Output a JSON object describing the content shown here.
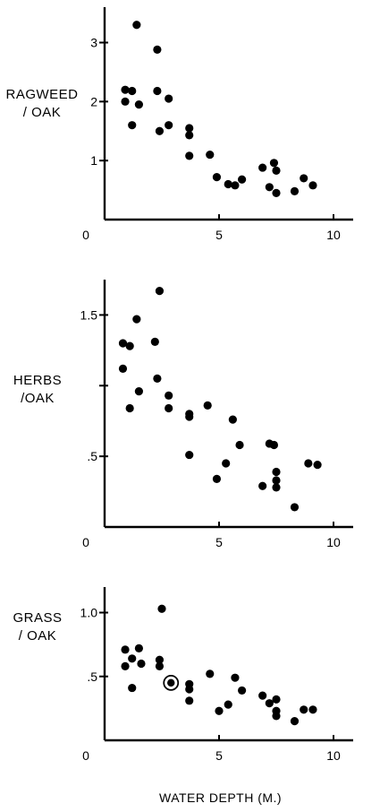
{
  "chart_data": [
    {
      "type": "scatter",
      "ylabel_line1": "RAGWEED",
      "ylabel_line2": "/ OAK",
      "xlabel": "",
      "xlim": [
        0,
        11
      ],
      "ylim": [
        0,
        3.6
      ],
      "xticks": [
        0,
        5,
        10
      ],
      "yticks": [
        1,
        2,
        3
      ],
      "x": [
        0.9,
        0.9,
        1.2,
        1.2,
        1.4,
        1.5,
        2.3,
        2.3,
        2.4,
        2.8,
        2.8,
        3.7,
        3.7,
        3.7,
        4.6,
        4.9,
        5.4,
        5.7,
        6.0,
        6.9,
        7.2,
        7.4,
        7.5,
        7.5,
        8.3,
        8.7,
        9.1
      ],
      "y": [
        2.2,
        2.0,
        2.18,
        1.6,
        3.3,
        1.95,
        2.88,
        2.18,
        1.5,
        2.05,
        1.6,
        1.55,
        1.43,
        1.08,
        1.1,
        0.72,
        0.6,
        0.58,
        0.68,
        0.88,
        0.55,
        0.96,
        0.83,
        0.45,
        0.48,
        0.7,
        0.58
      ]
    },
    {
      "type": "scatter",
      "ylabel_line1": "HERBS",
      "ylabel_line2": "/OAK",
      "xlabel": "",
      "xlim": [
        0,
        11
      ],
      "ylim": [
        0,
        1.75
      ],
      "xticks": [
        0,
        5,
        10
      ],
      "yticks": [
        0.5,
        1.0,
        1.5
      ],
      "ytick_labels": [
        ".5",
        "",
        "1.5"
      ],
      "x": [
        0.8,
        0.8,
        1.1,
        1.1,
        1.4,
        1.5,
        2.2,
        2.3,
        2.4,
        2.8,
        2.8,
        3.7,
        3.7,
        3.7,
        4.5,
        4.9,
        5.3,
        5.6,
        5.9,
        6.9,
        7.2,
        7.4,
        7.5,
        7.5,
        7.5,
        8.3,
        8.9,
        9.3
      ],
      "y": [
        1.3,
        1.12,
        1.28,
        0.84,
        1.47,
        0.96,
        1.31,
        1.05,
        1.67,
        0.93,
        0.84,
        0.8,
        0.78,
        0.51,
        0.86,
        0.34,
        0.45,
        0.76,
        0.58,
        0.29,
        0.59,
        0.58,
        0.39,
        0.33,
        0.28,
        0.14,
        0.45,
        0.44
      ]
    },
    {
      "type": "scatter",
      "ylabel_line1": "GRASS",
      "ylabel_line2": "/ OAK",
      "xlabel": "WATER DEPTH (M.)",
      "xlim": [
        0,
        11
      ],
      "ylim": [
        0,
        1.2
      ],
      "xticks": [
        0,
        5,
        10
      ],
      "yticks": [
        0.5,
        1.0
      ],
      "ytick_labels": [
        ".5",
        "1.0"
      ],
      "x": [
        0.9,
        0.9,
        1.2,
        1.2,
        1.5,
        1.6,
        2.4,
        2.4,
        2.5,
        3.7,
        3.7,
        3.7,
        4.6,
        5.0,
        5.4,
        5.7,
        6.0,
        6.9,
        7.2,
        7.5,
        7.5,
        7.5,
        8.3,
        8.7,
        9.1
      ],
      "y": [
        0.71,
        0.58,
        0.64,
        0.41,
        0.72,
        0.6,
        0.63,
        0.58,
        1.03,
        0.44,
        0.4,
        0.31,
        0.52,
        0.23,
        0.28,
        0.49,
        0.39,
        0.35,
        0.29,
        0.32,
        0.23,
        0.19,
        0.15,
        0.24,
        0.24
      ],
      "highlight": {
        "x": 2.9,
        "y": 0.45
      }
    }
  ]
}
